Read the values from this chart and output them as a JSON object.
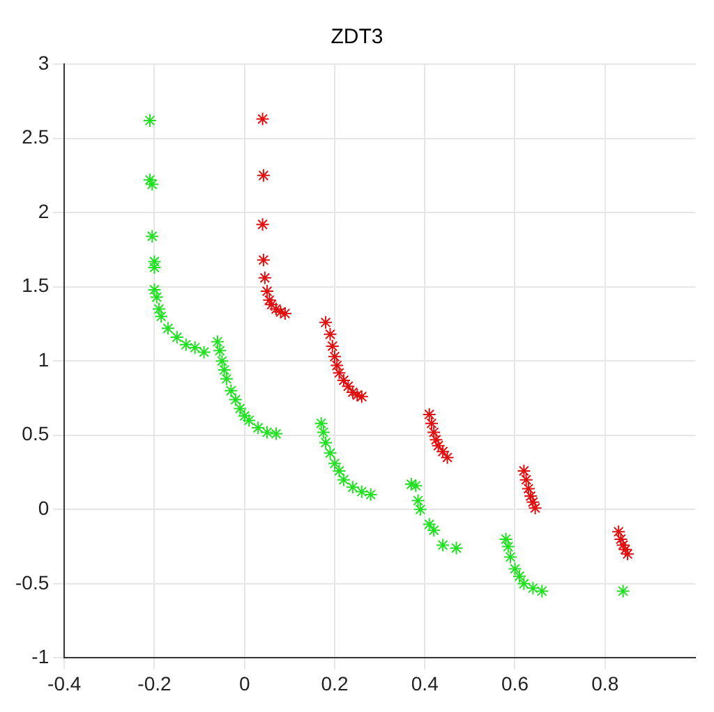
{
  "chart_data": {
    "type": "scatter",
    "title": "ZDT3",
    "xlim": [
      -0.4,
      1
    ],
    "xticks": [
      -0.4,
      -0.2,
      0,
      0.2,
      0.4,
      0.6,
      0.8
    ],
    "ylim": [
      -1,
      3
    ],
    "yticks": [
      -1,
      -0.5,
      0,
      0.5,
      1,
      1.5,
      2,
      2.5,
      3
    ],
    "grid": true,
    "legend": false,
    "marker": "cross",
    "series": [
      {
        "color": "#e01010",
        "x": [
          0.04,
          0.042,
          0.04,
          0.042,
          0.045,
          0.05,
          0.055,
          0.06,
          0.07,
          0.08,
          0.09,
          0.18,
          0.19,
          0.195,
          0.2,
          0.205,
          0.21,
          0.22,
          0.23,
          0.24,
          0.25,
          0.26,
          0.41,
          0.415,
          0.42,
          0.425,
          0.43,
          0.44,
          0.45,
          0.62,
          0.625,
          0.63,
          0.635,
          0.64,
          0.645,
          0.83,
          0.835,
          0.84,
          0.845,
          0.85
        ],
        "values": [
          2.63,
          2.25,
          1.92,
          1.68,
          1.56,
          1.47,
          1.41,
          1.38,
          1.35,
          1.33,
          1.32,
          1.26,
          1.18,
          1.1,
          1.03,
          0.97,
          0.92,
          0.87,
          0.83,
          0.79,
          0.77,
          0.76,
          0.64,
          0.58,
          0.52,
          0.47,
          0.43,
          0.39,
          0.35,
          0.26,
          0.2,
          0.14,
          0.09,
          0.05,
          0.01,
          -0.15,
          -0.2,
          -0.24,
          -0.27,
          -0.3
        ]
      },
      {
        "color": "#22e022",
        "x": [
          -0.21,
          -0.21,
          -0.205,
          -0.205,
          -0.2,
          -0.2,
          -0.2,
          -0.195,
          -0.19,
          -0.185,
          -0.17,
          -0.15,
          -0.13,
          -0.11,
          -0.09,
          -0.06,
          -0.055,
          -0.05,
          -0.045,
          -0.04,
          -0.03,
          -0.02,
          -0.01,
          0,
          0.01,
          0.03,
          0.05,
          0.07,
          0.17,
          0.175,
          0.18,
          0.19,
          0.2,
          0.21,
          0.22,
          0.24,
          0.26,
          0.28,
          0.37,
          0.38,
          0.385,
          0.39,
          0.41,
          0.42,
          0.44,
          0.47,
          0.58,
          0.585,
          0.59,
          0.6,
          0.61,
          0.62,
          0.64,
          0.66,
          0.84
        ],
        "values": [
          2.62,
          2.22,
          2.19,
          1.84,
          1.67,
          1.63,
          1.48,
          1.43,
          1.35,
          1.3,
          1.22,
          1.16,
          1.11,
          1.09,
          1.06,
          1.13,
          1.07,
          1,
          0.94,
          0.88,
          0.8,
          0.74,
          0.68,
          0.63,
          0.6,
          0.55,
          0.52,
          0.51,
          0.58,
          0.52,
          0.45,
          0.38,
          0.31,
          0.26,
          0.2,
          0.15,
          0.12,
          0.1,
          0.17,
          0.16,
          0.06,
          0,
          -0.1,
          -0.14,
          -0.24,
          -0.26,
          -0.2,
          -0.25,
          -0.32,
          -0.4,
          -0.45,
          -0.5,
          -0.53,
          -0.55,
          -0.55
        ]
      }
    ]
  }
}
